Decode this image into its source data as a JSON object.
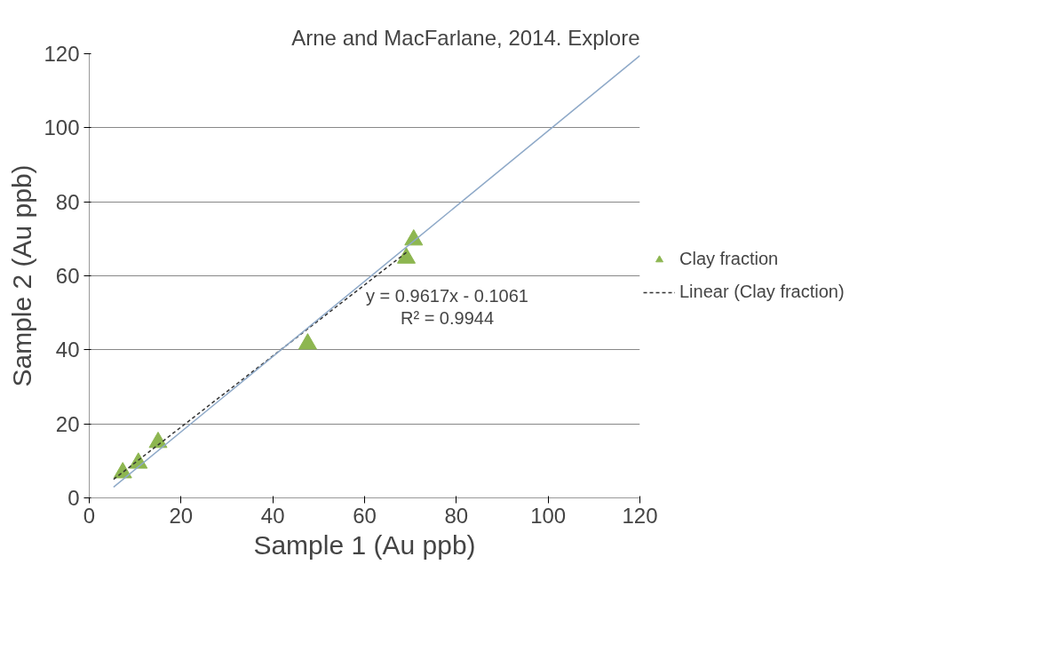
{
  "chart_data": {
    "type": "scatter",
    "title": "Arne and MacFarlane, 2014. Explore",
    "xlabel": "Sample 1 (Au ppb)",
    "ylabel": "Sample 2 (Au ppb)",
    "xlim": [
      0,
      120
    ],
    "ylim": [
      0,
      120
    ],
    "xticks": [
      0,
      20,
      40,
      60,
      80,
      100,
      120
    ],
    "yticks": [
      0,
      20,
      40,
      60,
      80,
      100,
      120
    ],
    "grid": "y",
    "legend": "right",
    "marker": "triangle",
    "series": [
      {
        "name": "Clay fraction",
        "color": "#8db650",
        "x": [
          7.3,
          10.7,
          15,
          47.6,
          69.1,
          70.7
        ],
        "values": [
          6.8,
          9.4,
          15,
          41.6,
          64.8,
          69.7
        ]
      },
      {
        "type": "line",
        "name": "Linear (Clay fraction)",
        "color": "#333333",
        "line_style": "dashed",
        "marker": "none",
        "x": [
          5.3,
          69.1
        ],
        "values": [
          5,
          66.3
        ]
      },
      {
        "type": "line",
        "color": "#8ea9c8",
        "line_style": "solid",
        "marker": "none",
        "x": [
          5.3,
          120
        ],
        "values": [
          2.9,
          119.5
        ]
      }
    ],
    "annotations": [
      "y = 0.9617x - 0.1061",
      "R² = 0.9944"
    ]
  }
}
